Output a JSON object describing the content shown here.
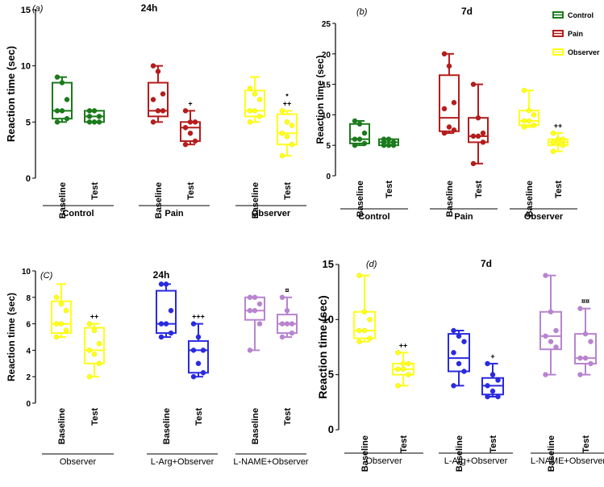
{
  "figure_legend": {
    "items": [
      {
        "label": "Control",
        "color": "#1b7a1b"
      },
      {
        "label": "Pain",
        "color": "#b51c1c"
      },
      {
        "label": "Observer",
        "color": "#ffff1a"
      }
    ]
  },
  "chart_data": [
    {
      "type": "box",
      "panel_label": "(a)",
      "title": "24h",
      "ylabel": "Reaction time (sec)",
      "ylim": [
        0,
        15
      ],
      "yticks": [
        0,
        5,
        10,
        15
      ],
      "groups": [
        {
          "label": "Control",
          "color": "#1b7a1b",
          "series": [
            {
              "category": "Baseline",
              "min": 5,
              "q1": 5.3,
              "median": 6,
              "q3": 8.5,
              "max": 9,
              "points": [
                9,
                8.5,
                7,
                6,
                6,
                5.3,
                5
              ],
              "marker": ""
            },
            {
              "category": "Test",
              "min": 5,
              "q1": 5,
              "median": 5.5,
              "q3": 6,
              "max": 6,
              "points": [
                6,
                6,
                5.5,
                5.5,
                5,
                5,
                5
              ],
              "marker": ""
            }
          ]
        },
        {
          "label": "Pain",
          "color": "#b51c1c",
          "series": [
            {
              "category": "Baseline",
              "min": 5,
              "q1": 5.5,
              "median": 6,
              "q3": 8.5,
              "max": 10,
              "points": [
                10,
                9.5,
                7.5,
                7,
                6,
                6,
                5
              ],
              "marker": ""
            },
            {
              "category": "Test",
              "min": 3,
              "q1": 3.3,
              "median": 4.5,
              "q3": 5,
              "max": 6,
              "points": [
                6,
                5,
                5,
                4.5,
                4,
                3.3,
                3
              ],
              "marker": "+"
            }
          ]
        },
        {
          "label": "Observer",
          "color": "#ffff1a",
          "series": [
            {
              "category": "Baseline",
              "min": 5,
              "q1": 5.5,
              "median": 6,
              "q3": 7.8,
              "max": 9,
              "points": [
                8,
                7.5,
                7,
                6,
                6,
                5.5,
                5
              ],
              "marker": ""
            },
            {
              "category": "Test",
              "min": 2,
              "q1": 3,
              "median": 4,
              "q3": 5.7,
              "max": 6,
              "points": [
                6,
                5,
                4.7,
                4,
                3.7,
                3,
                2
              ],
              "marker": "*\n++"
            }
          ]
        }
      ]
    },
    {
      "type": "box",
      "panel_label": "(b)",
      "title": "7d",
      "ylabel": "Reaction time (sec)",
      "ylim": [
        0,
        25
      ],
      "yticks": [
        0,
        5,
        10,
        15,
        20,
        25
      ],
      "groups": [
        {
          "label": "Control",
          "color": "#1b7a1b",
          "series": [
            {
              "category": "Baseline",
              "min": 5,
              "q1": 5.3,
              "median": 6,
              "q3": 8.5,
              "max": 9,
              "points": [
                9,
                8.5,
                7,
                6,
                6,
                5.3,
                5
              ],
              "marker": ""
            },
            {
              "category": "Test",
              "min": 5,
              "q1": 5,
              "median": 5.5,
              "q3": 6,
              "max": 6,
              "points": [
                6,
                6,
                5.5,
                5.5,
                5,
                5,
                5
              ],
              "marker": ""
            }
          ]
        },
        {
          "label": "Pain",
          "color": "#b51c1c",
          "series": [
            {
              "category": "Baseline",
              "min": 7,
              "q1": 7.3,
              "median": 9.5,
              "q3": 16.5,
              "max": 20,
              "points": [
                20,
                18,
                12,
                11,
                8,
                7.5,
                7
              ],
              "marker": ""
            },
            {
              "category": "Test",
              "min": 2,
              "q1": 5.5,
              "median": 6.5,
              "q3": 9.5,
              "max": 15,
              "points": [
                15,
                9.5,
                7,
                6.5,
                6.5,
                5.5,
                2
              ],
              "marker": ""
            }
          ]
        },
        {
          "label": "Observer",
          "color": "#ffff1a",
          "series": [
            {
              "category": "Baseline",
              "min": 8,
              "q1": 8.3,
              "median": 9,
              "q3": 10.7,
              "max": 14,
              "points": [
                14,
                10.7,
                10,
                9,
                9,
                8.3,
                8
              ],
              "marker": ""
            },
            {
              "category": "Test",
              "min": 4,
              "q1": 5,
              "median": 5.5,
              "q3": 6,
              "max": 7,
              "points": [
                7,
                6,
                6,
                5.5,
                5.5,
                5,
                4
              ],
              "marker": "++"
            }
          ]
        }
      ]
    },
    {
      "type": "box",
      "panel_label": "(C)",
      "title": "24h",
      "ylabel": "Reaction time (sec)",
      "ylim": [
        0,
        10
      ],
      "yticks": [
        0,
        2,
        4,
        6,
        8,
        10
      ],
      "groups": [
        {
          "label": "Observer",
          "color": "#ffff1a",
          "series": [
            {
              "category": "Baseline",
              "min": 5,
              "q1": 5.3,
              "median": 6,
              "q3": 7.7,
              "max": 9,
              "points": [
                8,
                7.5,
                7,
                6,
                6,
                5.5,
                5
              ],
              "marker": ""
            },
            {
              "category": "Test",
              "min": 2,
              "q1": 3,
              "median": 4,
              "q3": 5.7,
              "max": 6,
              "points": [
                6,
                5.5,
                4.5,
                4,
                3.7,
                3,
                2
              ],
              "marker": "++"
            }
          ]
        },
        {
          "label": "L-Arg+Observer",
          "color": "#2a2ae0",
          "series": [
            {
              "category": "Baseline",
              "min": 5,
              "q1": 5.3,
              "median": 6,
              "q3": 8.5,
              "max": 9,
              "points": [
                9,
                9,
                7,
                6,
                6,
                5.3,
                5
              ],
              "marker": ""
            },
            {
              "category": "Test",
              "min": 2,
              "q1": 2.3,
              "median": 4,
              "q3": 4.7,
              "max": 6,
              "points": [
                6,
                5,
                4,
                4,
                3,
                2.3,
                2
              ],
              "marker": "+++"
            }
          ]
        },
        {
          "label": "L-NAME+Observer",
          "color": "#b884cf",
          "series": [
            {
              "category": "Baseline",
              "min": 4,
              "q1": 6.3,
              "median": 7,
              "q3": 8,
              "max": 8,
              "points": [
                8,
                8,
                7.5,
                7,
                7,
                6,
                4
              ],
              "marker": ""
            },
            {
              "category": "Test",
              "min": 5,
              "q1": 5.3,
              "median": 6,
              "q3": 6.7,
              "max": 8,
              "points": [
                8,
                7,
                6,
                6,
                6,
                5.3,
                5
              ],
              "marker": "¤"
            }
          ]
        }
      ]
    },
    {
      "type": "box",
      "panel_label": "(d)",
      "title": "7d",
      "ylabel": "Reaction time (sec)",
      "ylim": [
        0,
        15
      ],
      "yticks": [
        0,
        5,
        10,
        15
      ],
      "groups": [
        {
          "label": "Observer",
          "color": "#ffff1a",
          "series": [
            {
              "category": "Baseline",
              "min": 8,
              "q1": 8.3,
              "median": 9,
              "q3": 10.7,
              "max": 14,
              "points": [
                14,
                10.7,
                10,
                9,
                9,
                8.3,
                8
              ],
              "marker": ""
            },
            {
              "category": "Test",
              "min": 4,
              "q1": 5,
              "median": 5.5,
              "q3": 6,
              "max": 7,
              "points": [
                7,
                6,
                6,
                5.5,
                5.5,
                5,
                4
              ],
              "marker": "++"
            }
          ]
        },
        {
          "label": "L-Arg+Observer",
          "color": "#2a2ae0",
          "series": [
            {
              "category": "Baseline",
              "min": 4,
              "q1": 5.3,
              "median": 6.5,
              "q3": 8.7,
              "max": 9,
              "points": [
                9,
                8.5,
                8,
                7,
                6,
                5.3,
                4
              ],
              "marker": ""
            },
            {
              "category": "Test",
              "min": 3,
              "q1": 3.2,
              "median": 4,
              "q3": 4.7,
              "max": 6,
              "points": [
                6,
                5,
                4.5,
                4,
                3.5,
                3,
                3
              ],
              "marker": "+"
            }
          ]
        },
        {
          "label": "L-NAME+Observer",
          "color": "#b884cf",
          "series": [
            {
              "category": "Baseline",
              "min": 5,
              "q1": 7.3,
              "median": 8.5,
              "q3": 10.7,
              "max": 14,
              "points": [
                14,
                10.7,
                9,
                8.5,
                8,
                7.5,
                5
              ],
              "marker": ""
            },
            {
              "category": "Test",
              "min": 5,
              "q1": 6,
              "median": 6.5,
              "q3": 8.7,
              "max": 11,
              "points": [
                11,
                8.7,
                8,
                6.5,
                6.5,
                6,
                5
              ],
              "marker": "¤¤"
            }
          ]
        }
      ]
    }
  ]
}
